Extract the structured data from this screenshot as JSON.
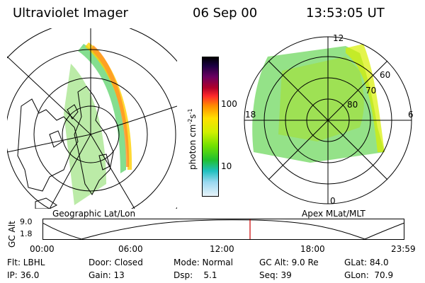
{
  "header": {
    "instrument": "Ultraviolet Imager",
    "date": "06 Sep 00",
    "time": "13:53:05 UT"
  },
  "left_panel": {
    "caption": "Geographic Lat/Lon"
  },
  "right_panel": {
    "caption": "Apex MLat/MLT",
    "mlat_labels": [
      "60",
      "70",
      "80"
    ],
    "mlt_labels": {
      "top": "12",
      "left": "18",
      "right": "6",
      "bottom": "0"
    }
  },
  "colorbar": {
    "unit_label": "photon cm",
    "unit_exp1": "-2",
    "unit_mid": "s",
    "unit_exp2": "-1",
    "ticks": [
      "100",
      "10"
    ],
    "colors": [
      "#000000",
      "#1a0040",
      "#6a0060",
      "#b0002a",
      "#ff2a2a",
      "#ff8c00",
      "#ffe000",
      "#d0f000",
      "#70e000",
      "#20c030",
      "#20c0c0",
      "#9ad8f0",
      "#e8f4fa"
    ]
  },
  "altitude_plot": {
    "ylabel": "GC Alt",
    "y_ticks": [
      "9.0",
      "1.8"
    ],
    "x_ticks": [
      "00:00",
      "06:00",
      "12:00",
      "18:00",
      "23:59"
    ],
    "marker_color": "#cc0000"
  },
  "status": {
    "row1": {
      "flt": "Flt: LBHL",
      "door": "Door: Closed",
      "mode": "Mode: Normal",
      "gcalt": "GC Alt: 9.0 Re",
      "glat": "GLat: 84.0"
    },
    "row2": {
      "ip": "IP: 36.0",
      "gain": "Gain: 13",
      "dsp": "Dsp:    5.1",
      "seq": "Seq: 39",
      "glon": "GLon:  70.9"
    }
  }
}
